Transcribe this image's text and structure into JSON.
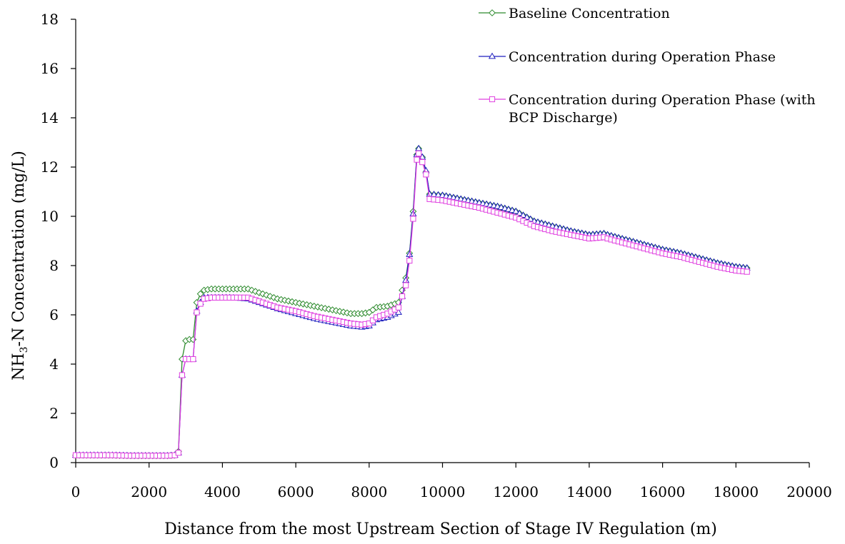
{
  "chart_data": {
    "type": "line",
    "title": "",
    "xlabel": "Distance from the most Upstream Section of Stage IV Regulation (m)",
    "ylabel_main": "NH",
    "ylabel_sub": "3",
    "ylabel_rest": "-N Concentration (mg/L)",
    "xlim": [
      0,
      20000
    ],
    "ylim": [
      0,
      18
    ],
    "x_ticks": [
      0,
      2000,
      4000,
      6000,
      8000,
      10000,
      12000,
      14000,
      16000,
      18000,
      20000
    ],
    "y_ticks": [
      0,
      2,
      4,
      6,
      8,
      10,
      12,
      14,
      16,
      18
    ],
    "x_tick_labels": [
      "0",
      "2000",
      "4000",
      "6000",
      "8000",
      "10000",
      "12000",
      "14000",
      "16000",
      "18000",
      "20000"
    ],
    "y_tick_labels": [
      "0",
      "2",
      "4",
      "6",
      "8",
      "10",
      "12",
      "14",
      "16",
      "18"
    ],
    "grid": false,
    "legend_position": "top-right",
    "legend_labels": [
      "Baseline Concentration",
      "Concentration during Operation Phase",
      "Concentration during Operation Phase (with",
      "BCP Discharge)"
    ],
    "series": [
      {
        "name": "Baseline Concentration",
        "color": "#2e8b2e",
        "marker": "diamond",
        "points": [
          [
            0,
            0.3
          ],
          [
            500,
            0.3
          ],
          [
            1000,
            0.3
          ],
          [
            1500,
            0.28
          ],
          [
            2000,
            0.28
          ],
          [
            2500,
            0.28
          ],
          [
            2700,
            0.3
          ],
          [
            2800,
            0.45
          ],
          [
            2900,
            4.2
          ],
          [
            3000,
            4.95
          ],
          [
            3100,
            5.0
          ],
          [
            3200,
            5.0
          ],
          [
            3300,
            6.5
          ],
          [
            3400,
            6.85
          ],
          [
            3500,
            7.0
          ],
          [
            3700,
            7.05
          ],
          [
            4200,
            7.05
          ],
          [
            4700,
            7.05
          ],
          [
            5000,
            6.9
          ],
          [
            5500,
            6.65
          ],
          [
            6000,
            6.5
          ],
          [
            6500,
            6.35
          ],
          [
            7000,
            6.2
          ],
          [
            7500,
            6.05
          ],
          [
            7800,
            6.05
          ],
          [
            8000,
            6.1
          ],
          [
            8200,
            6.3
          ],
          [
            8500,
            6.35
          ],
          [
            8800,
            6.5
          ],
          [
            9000,
            7.5
          ],
          [
            9100,
            8.5
          ],
          [
            9200,
            10.2
          ],
          [
            9300,
            12.5
          ],
          [
            9350,
            12.75
          ],
          [
            9450,
            12.4
          ],
          [
            9550,
            11.8
          ],
          [
            9650,
            10.9
          ],
          [
            10000,
            10.85
          ],
          [
            10500,
            10.7
          ],
          [
            11000,
            10.55
          ],
          [
            11500,
            10.4
          ],
          [
            12000,
            10.2
          ],
          [
            12500,
            9.8
          ],
          [
            13000,
            9.6
          ],
          [
            13500,
            9.4
          ],
          [
            14000,
            9.25
          ],
          [
            14400,
            9.3
          ],
          [
            14500,
            9.25
          ],
          [
            15000,
            9.05
          ],
          [
            15500,
            8.85
          ],
          [
            16000,
            8.65
          ],
          [
            16500,
            8.5
          ],
          [
            17000,
            8.3
          ],
          [
            17500,
            8.1
          ],
          [
            18000,
            7.95
          ],
          [
            18300,
            7.9
          ]
        ]
      },
      {
        "name": "Concentration during Operation Phase",
        "color": "#1f1fbf",
        "marker": "triangle",
        "points": [
          [
            0,
            0.3
          ],
          [
            500,
            0.3
          ],
          [
            1000,
            0.3
          ],
          [
            1500,
            0.28
          ],
          [
            2000,
            0.28
          ],
          [
            2500,
            0.28
          ],
          [
            2700,
            0.3
          ],
          [
            2800,
            0.4
          ],
          [
            2900,
            3.55
          ],
          [
            3000,
            4.2
          ],
          [
            3100,
            4.2
          ],
          [
            3200,
            4.2
          ],
          [
            3300,
            6.15
          ],
          [
            3400,
            6.5
          ],
          [
            3500,
            6.7
          ],
          [
            3700,
            6.7
          ],
          [
            4200,
            6.7
          ],
          [
            4700,
            6.65
          ],
          [
            5000,
            6.5
          ],
          [
            5500,
            6.25
          ],
          [
            6000,
            6.05
          ],
          [
            6500,
            5.85
          ],
          [
            7000,
            5.7
          ],
          [
            7500,
            5.55
          ],
          [
            7800,
            5.5
          ],
          [
            8000,
            5.55
          ],
          [
            8200,
            5.8
          ],
          [
            8500,
            5.9
          ],
          [
            8800,
            6.1
          ],
          [
            9000,
            7.4
          ],
          [
            9100,
            8.45
          ],
          [
            9200,
            10.1
          ],
          [
            9300,
            12.5
          ],
          [
            9350,
            12.75
          ],
          [
            9450,
            12.4
          ],
          [
            9550,
            11.85
          ],
          [
            9650,
            10.9
          ],
          [
            10000,
            10.85
          ],
          [
            10500,
            10.7
          ],
          [
            11000,
            10.55
          ],
          [
            11500,
            10.4
          ],
          [
            12000,
            10.2
          ],
          [
            12500,
            9.8
          ],
          [
            13000,
            9.6
          ],
          [
            13500,
            9.4
          ],
          [
            14000,
            9.25
          ],
          [
            14400,
            9.3
          ],
          [
            14500,
            9.25
          ],
          [
            15000,
            9.05
          ],
          [
            15500,
            8.85
          ],
          [
            16000,
            8.65
          ],
          [
            16500,
            8.5
          ],
          [
            17000,
            8.3
          ],
          [
            17500,
            8.1
          ],
          [
            18000,
            7.95
          ],
          [
            18300,
            7.9
          ]
        ]
      },
      {
        "name": "Concentration during Operation Phase (with BCP Discharge)",
        "color": "#e040e0",
        "marker": "square",
        "points": [
          [
            0,
            0.3
          ],
          [
            500,
            0.3
          ],
          [
            1000,
            0.3
          ],
          [
            1500,
            0.28
          ],
          [
            2000,
            0.28
          ],
          [
            2500,
            0.28
          ],
          [
            2700,
            0.3
          ],
          [
            2800,
            0.4
          ],
          [
            2900,
            3.55
          ],
          [
            3000,
            4.2
          ],
          [
            3100,
            4.2
          ],
          [
            3200,
            4.2
          ],
          [
            3300,
            6.1
          ],
          [
            3400,
            6.45
          ],
          [
            3500,
            6.65
          ],
          [
            3700,
            6.7
          ],
          [
            4200,
            6.7
          ],
          [
            4700,
            6.7
          ],
          [
            5000,
            6.55
          ],
          [
            5500,
            6.3
          ],
          [
            6000,
            6.15
          ],
          [
            6500,
            5.95
          ],
          [
            7000,
            5.8
          ],
          [
            7500,
            5.65
          ],
          [
            7800,
            5.6
          ],
          [
            8000,
            5.65
          ],
          [
            8200,
            5.9
          ],
          [
            8500,
            6.05
          ],
          [
            8800,
            6.3
          ],
          [
            9000,
            7.2
          ],
          [
            9100,
            8.2
          ],
          [
            9200,
            9.9
          ],
          [
            9300,
            12.3
          ],
          [
            9350,
            12.55
          ],
          [
            9450,
            12.2
          ],
          [
            9550,
            11.7
          ],
          [
            9650,
            10.7
          ],
          [
            10000,
            10.65
          ],
          [
            10500,
            10.5
          ],
          [
            11000,
            10.35
          ],
          [
            11500,
            10.15
          ],
          [
            12000,
            9.95
          ],
          [
            12500,
            9.6
          ],
          [
            13000,
            9.4
          ],
          [
            13500,
            9.25
          ],
          [
            14000,
            9.1
          ],
          [
            14400,
            9.15
          ],
          [
            14500,
            9.1
          ],
          [
            15000,
            8.9
          ],
          [
            15500,
            8.7
          ],
          [
            16000,
            8.5
          ],
          [
            16500,
            8.35
          ],
          [
            17000,
            8.15
          ],
          [
            17500,
            7.95
          ],
          [
            18000,
            7.8
          ],
          [
            18300,
            7.75
          ]
        ]
      }
    ]
  }
}
